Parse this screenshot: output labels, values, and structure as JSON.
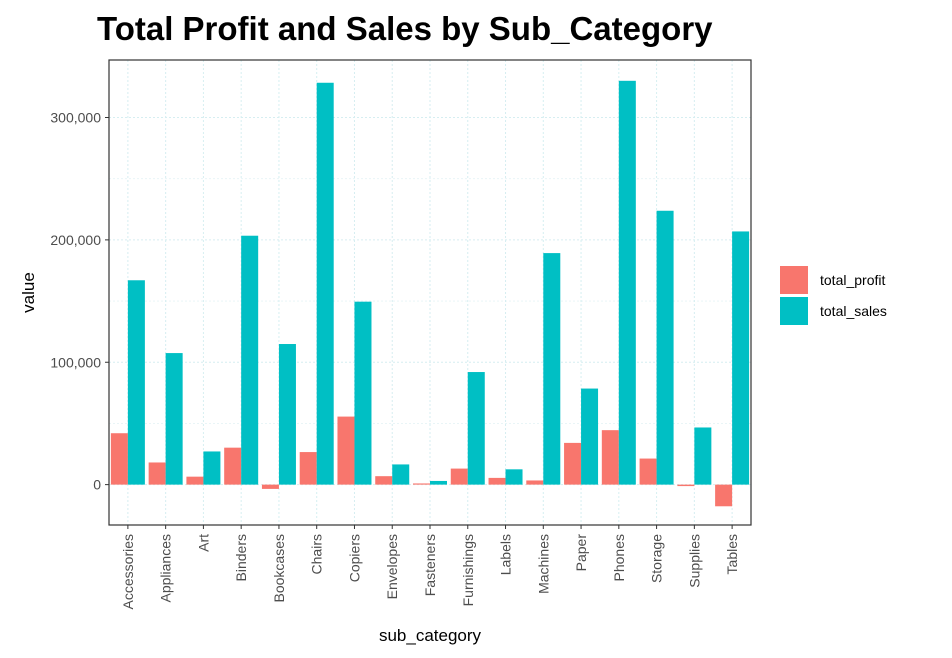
{
  "chart_data": {
    "type": "bar",
    "title": "Total Profit and Sales by Sub_Category",
    "xlabel": "sub_category",
    "ylabel": "value",
    "categories": [
      "Accessories",
      "Appliances",
      "Art",
      "Binders",
      "Bookcases",
      "Chairs",
      "Copiers",
      "Envelopes",
      "Fasteners",
      "Furnishings",
      "Labels",
      "Machines",
      "Paper",
      "Phones",
      "Storage",
      "Supplies",
      "Tables"
    ],
    "series": [
      {
        "name": "total_profit",
        "color": "#f8766d",
        "values": [
          42000,
          18100,
          6500,
          30200,
          -3500,
          26600,
          55600,
          6900,
          950,
          13100,
          5500,
          3400,
          34100,
          44500,
          21300,
          -1200,
          -17700
        ]
      },
      {
        "name": "total_sales",
        "color": "#00bfc4",
        "values": [
          167000,
          107500,
          27100,
          203400,
          114900,
          328400,
          149500,
          16500,
          3000,
          92000,
          12500,
          189200,
          78500,
          330000,
          223800,
          46700,
          206900
        ]
      }
    ],
    "ylim": [
      -33000,
      347000
    ],
    "yticks": [
      0,
      100000,
      200000,
      300000
    ],
    "ytick_labels": [
      "0",
      "100,000",
      "200,000",
      "300,000"
    ],
    "grid": true,
    "legend_position": "right"
  }
}
